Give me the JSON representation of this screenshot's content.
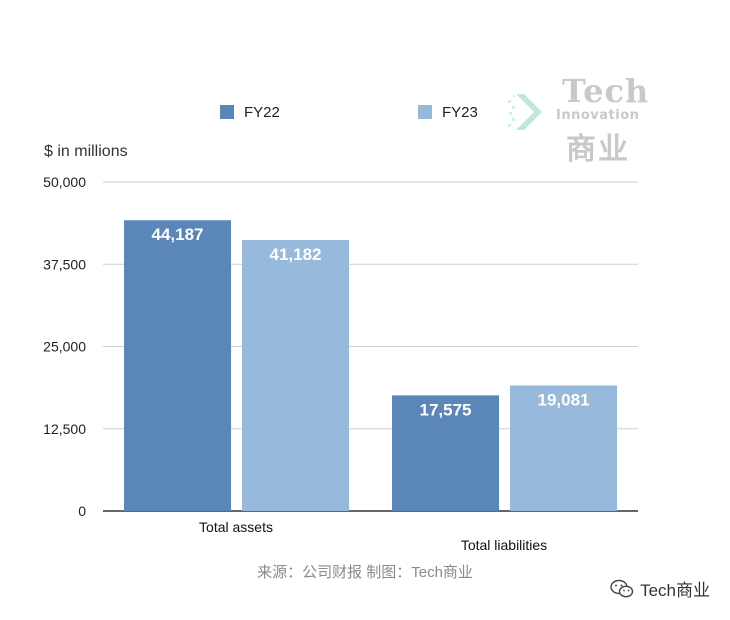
{
  "chart_data": {
    "type": "bar",
    "categories": [
      "Total assets",
      "Total liabilities"
    ],
    "series": [
      {
        "name": "FY22",
        "values": [
          44187,
          17575
        ],
        "labels": [
          "44,187",
          "17,575"
        ],
        "color": "#5b86b8"
      },
      {
        "name": "FY23",
        "values": [
          41182,
          19081
        ],
        "labels": [
          "41,182",
          "19,081"
        ],
        "color": "#97b9dc"
      }
    ],
    "ylabel": "$ in millions",
    "ylim": [
      0,
      50000
    ],
    "yticks": [
      0,
      12500,
      25000,
      37500,
      50000
    ],
    "ytick_labels": [
      "0",
      "12,500",
      "25,000",
      "37,500",
      "50,000"
    ],
    "grid": true,
    "legend_position": "top"
  },
  "source": "来源：公司财报 制图：Tech商业",
  "watermark": {
    "line1": "Tech",
    "line2": "Innovation",
    "line3": "商业"
  },
  "footer": {
    "account": "Tech商业",
    "icon": "wechat-icon"
  }
}
